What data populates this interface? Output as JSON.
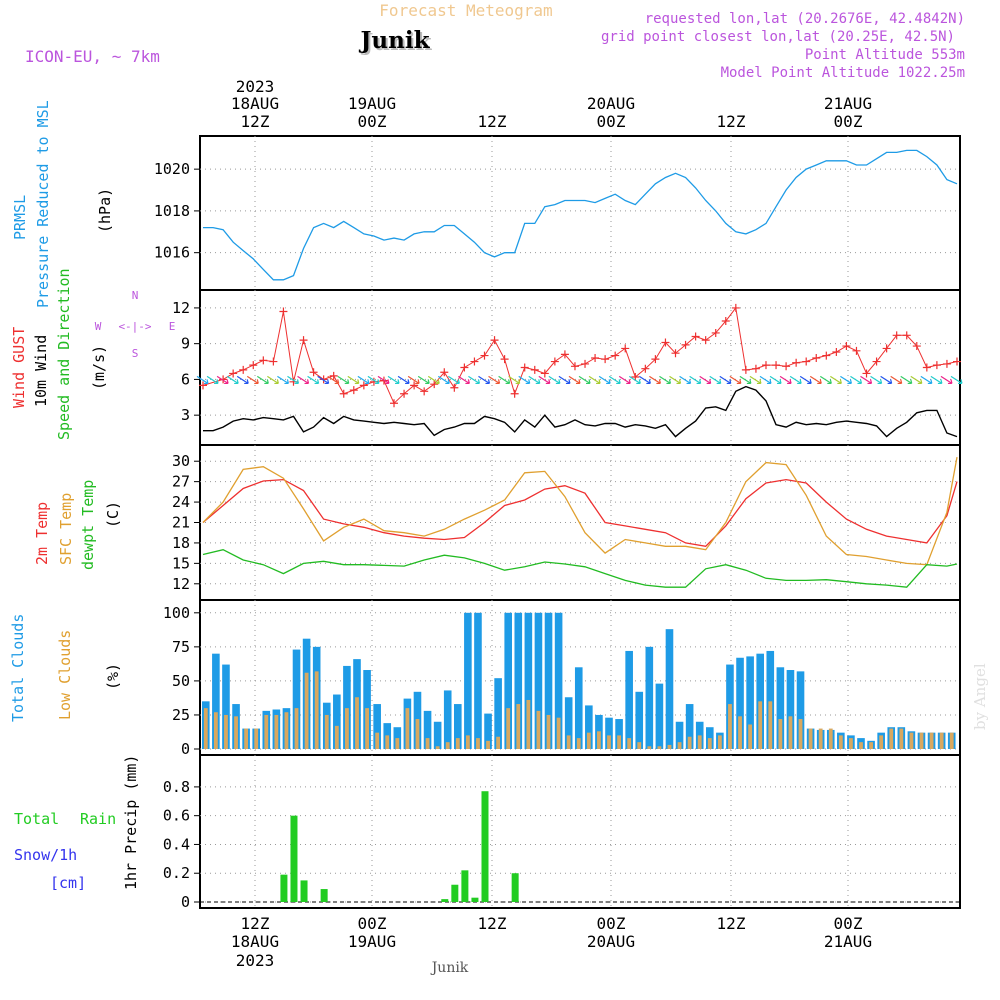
{
  "header": {
    "title": "Forecast Meteogram",
    "location": "Junik",
    "model": "ICON-EU, ~ 7km",
    "requested": "requested lon,lat (20.2676E, 42.4842N)",
    "grid_point": "grid point closest lon,lat (20.25E, 42.5N)",
    "point_altitude": "Point Altitude 553m",
    "model_altitude": "Model Point Altitude 1022.25m",
    "footer_location": "Junik",
    "credit": "by Angel"
  },
  "time_axis": {
    "top_year": "2023",
    "labels": [
      {
        "hour": "12Z",
        "date": "18AUG",
        "year": "2023"
      },
      {
        "hour": "00Z",
        "date": "19AUG",
        "year": ""
      },
      {
        "hour": "12Z",
        "date": "",
        "year": ""
      },
      {
        "hour": "00Z",
        "date": "20AUG",
        "year": ""
      },
      {
        "hour": "12Z",
        "date": "",
        "year": ""
      },
      {
        "hour": "00Z",
        "date": "21AUG",
        "year": ""
      }
    ]
  },
  "panel_labels": {
    "pressure": {
      "line1": "PRMSL",
      "line2": "Pressure Reduced to MSL",
      "unit": "(hPa)"
    },
    "wind": {
      "line1": "Wind GUST",
      "line2": "10m Wind",
      "line3": "Speed and Direction",
      "unit": "(m/s)",
      "compass_n": "N",
      "compass_s": "S",
      "compass_w": "W",
      "compass_e": "E"
    },
    "temp": {
      "line1": "2m Temp",
      "line2": "SFC Temp",
      "line3": "dewpt Temp",
      "unit": "(C)"
    },
    "clouds": {
      "line1": "Total Clouds",
      "line2": "Low Clouds",
      "unit": "(%)"
    },
    "precip": {
      "line1": "Total",
      "line1b": "Rain",
      "line2": "Snow/1h",
      "line3": "[cm]",
      "unit": "1hr Precip (mm)"
    }
  },
  "colors": {
    "pressure": "#1e9be6",
    "gust": "#ee3030",
    "wind": "#000000",
    "temp2m": "#ee3030",
    "sfc": "#e0a030",
    "dewpt": "#22bb22",
    "total_clouds": "#1e9be6",
    "low_clouds": "#d8a860",
    "rain": "#22cc22",
    "snow": "#3333ee",
    "title": "#f0c890",
    "meta": "#bb55dd"
  },
  "chart_data": [
    {
      "type": "line",
      "name": "pressure",
      "x_hours": [
        0,
        3,
        6,
        9,
        12,
        15,
        18,
        21,
        24,
        27,
        30,
        33,
        36,
        39,
        42,
        45,
        48,
        51,
        54,
        57,
        60,
        63,
        66,
        69,
        72
      ],
      "series": [
        {
          "name": "PRMSL",
          "x": [
            0,
            1,
            2,
            3,
            4,
            5,
            6,
            7,
            8,
            9,
            10,
            11,
            12,
            13,
            14,
            15,
            16,
            17,
            18,
            19,
            20,
            21,
            22,
            23,
            24,
            25,
            26,
            27,
            28,
            29,
            30,
            31,
            32,
            33,
            34,
            35,
            36,
            37,
            38,
            39,
            40,
            41,
            42,
            43,
            44,
            45,
            46,
            47,
            48,
            49,
            50,
            51,
            52,
            53,
            54,
            55,
            56,
            57,
            58,
            59,
            60,
            61,
            62,
            63,
            64,
            65,
            66,
            67,
            68,
            69,
            70,
            71,
            72,
            73,
            74,
            75
          ],
          "values": [
            1017.2,
            1017.2,
            1017.1,
            1016.5,
            1016.1,
            1015.7,
            1015.2,
            1014.7,
            1014.7,
            1014.9,
            1016.2,
            1017.2,
            1017.4,
            1017.2,
            1017.5,
            1017.2,
            1016.9,
            1016.8,
            1016.6,
            1016.7,
            1016.6,
            1016.9,
            1017.0,
            1017.0,
            1017.3,
            1017.3,
            1016.9,
            1016.5,
            1016.0,
            1015.8,
            1016.0,
            1016.0,
            1017.4,
            1017.4,
            1018.2,
            1018.3,
            1018.5,
            1018.5,
            1018.5,
            1018.4,
            1018.6,
            1018.8,
            1018.5,
            1018.3,
            1018.8,
            1019.3,
            1019.6,
            1019.8,
            1019.6,
            1019.1,
            1018.5,
            1018.0,
            1017.4,
            1017.0,
            1016.9,
            1017.1,
            1017.4,
            1018.2,
            1019.0,
            1019.6,
            1020.0,
            1020.2,
            1020.4,
            1020.4,
            1020.4,
            1020.2,
            1020.2,
            1020.5,
            1020.8,
            1020.8,
            1020.9,
            1020.9,
            1020.6,
            1020.2,
            1019.5,
            1019.3
          ]
        }
      ],
      "ylim": [
        1014.5,
        1021.3
      ],
      "yticks": [
        1016,
        1018,
        1020
      ]
    },
    {
      "type": "line",
      "name": "wind",
      "series": [
        {
          "name": "Wind GUST",
          "x": [
            0,
            2,
            3,
            4,
            5,
            6,
            7,
            8,
            9,
            10,
            11,
            12,
            13,
            14,
            15,
            16,
            17,
            18,
            19,
            20,
            21,
            22,
            23,
            24,
            25,
            26,
            27,
            28,
            29,
            30,
            31,
            32,
            33,
            34,
            35,
            36,
            37,
            38,
            39,
            40,
            41,
            42,
            43,
            44,
            45,
            46,
            47,
            48,
            49,
            50,
            51,
            52,
            53,
            54,
            55,
            56,
            57,
            58,
            59,
            60,
            61,
            62,
            63,
            64,
            65,
            66,
            67,
            68,
            69,
            70,
            71,
            72,
            73,
            74,
            75
          ],
          "values": [
            5.5,
            6.0,
            6.5,
            6.8,
            7.2,
            7.6,
            7.5,
            11.7,
            5.8,
            9.3,
            6.6,
            6.0,
            6.3,
            4.8,
            5.1,
            5.5,
            5.8,
            5.9,
            4.0,
            4.8,
            5.5,
            5.0,
            5.6,
            6.6,
            5.3,
            7.0,
            7.5,
            8.0,
            9.3,
            7.7,
            4.8,
            7.0,
            6.8,
            6.5,
            7.5,
            8.1,
            7.1,
            7.3,
            7.8,
            7.7,
            8.0,
            8.6,
            6.2,
            6.9,
            7.7,
            9.1,
            8.2,
            8.9,
            9.6,
            9.3,
            9.9,
            10.9,
            12.0,
            6.8,
            6.9,
            7.2,
            7.2,
            7.1,
            7.4,
            7.5,
            7.8,
            8.0,
            8.3,
            8.8,
            8.4,
            6.5,
            7.5,
            8.6,
            9.7,
            9.7,
            8.8,
            7.0,
            7.2,
            7.3,
            7.5
          ]
        },
        {
          "name": "10m Wind",
          "x": [
            0,
            1,
            2,
            3,
            4,
            5,
            6,
            7,
            8,
            9,
            10,
            11,
            12,
            13,
            14,
            15,
            16,
            17,
            18,
            19,
            20,
            21,
            22,
            23,
            24,
            25,
            26,
            27,
            28,
            29,
            30,
            31,
            32,
            33,
            34,
            35,
            36,
            37,
            38,
            39,
            40,
            41,
            42,
            43,
            44,
            45,
            46,
            47,
            48,
            49,
            50,
            51,
            52,
            53,
            54,
            55,
            56,
            57,
            58,
            59,
            60,
            61,
            62,
            63,
            64,
            65,
            66,
            67,
            68,
            69,
            70,
            71,
            72,
            73,
            74,
            75
          ],
          "values": [
            1.7,
            1.7,
            2.0,
            2.5,
            2.7,
            2.6,
            2.8,
            2.7,
            2.6,
            2.9,
            1.6,
            2.0,
            2.8,
            2.3,
            2.9,
            2.6,
            2.5,
            2.4,
            2.3,
            2.4,
            2.3,
            2.2,
            2.3,
            1.3,
            1.8,
            2.0,
            2.3,
            2.3,
            2.9,
            2.7,
            2.4,
            1.6,
            2.6,
            2.0,
            3.0,
            2.0,
            2.2,
            2.6,
            2.2,
            2.1,
            2.3,
            2.3,
            2.0,
            2.2,
            2.1,
            1.9,
            2.2,
            1.2,
            1.9,
            2.5,
            3.6,
            3.7,
            3.4,
            5.0,
            5.4,
            5.1,
            4.2,
            2.2,
            2.0,
            2.4,
            2.2,
            2.3,
            2.2,
            2.4,
            2.5,
            2.4,
            2.3,
            2.1,
            1.2,
            1.9,
            2.4,
            3.2,
            3.4,
            3.4,
            1.5,
            1.2
          ]
        }
      ],
      "ylim": [
        1.0,
        13.0
      ],
      "yticks": [
        3,
        6,
        9,
        12
      ]
    },
    {
      "type": "line",
      "name": "temperature",
      "series": [
        {
          "name": "2m Temp",
          "x": [
            0,
            2,
            4,
            6,
            8,
            10,
            12,
            14,
            16,
            18,
            20,
            22,
            24,
            26,
            28,
            30,
            32,
            34,
            36,
            38,
            40,
            42,
            44,
            46,
            48,
            50,
            52,
            54,
            56,
            58,
            60,
            62,
            64,
            66,
            68,
            70,
            72,
            74,
            75
          ],
          "values": [
            21.0,
            23.5,
            26.0,
            27.1,
            27.3,
            25.7,
            21.5,
            20.8,
            20.3,
            19.5,
            19.0,
            18.7,
            18.5,
            18.8,
            21.0,
            23.5,
            24.3,
            25.9,
            26.4,
            25.3,
            21.0,
            20.5,
            20.0,
            19.5,
            18.0,
            17.5,
            20.5,
            24.5,
            26.8,
            27.3,
            26.8,
            24.0,
            21.5,
            20.0,
            19.0,
            18.5,
            18.0,
            22.0,
            27.0
          ]
        },
        {
          "name": "SFC Temp",
          "x": [
            0,
            2,
            4,
            6,
            8,
            10,
            12,
            14,
            16,
            18,
            20,
            22,
            24,
            26,
            28,
            30,
            32,
            34,
            36,
            38,
            40,
            42,
            44,
            46,
            48,
            50,
            52,
            54,
            56,
            58,
            60,
            62,
            64,
            66,
            68,
            70,
            72,
            74,
            75
          ],
          "values": [
            21.0,
            24.0,
            28.8,
            29.2,
            27.5,
            23.0,
            18.3,
            20.3,
            21.5,
            19.8,
            19.5,
            19.0,
            20.0,
            21.5,
            22.8,
            24.3,
            28.3,
            28.5,
            24.8,
            19.5,
            16.5,
            18.5,
            18.0,
            17.5,
            17.5,
            17.0,
            21.0,
            27.0,
            29.8,
            29.5,
            25.0,
            19.0,
            16.3,
            16.0,
            15.5,
            15.0,
            14.8,
            22.5,
            30.6
          ]
        },
        {
          "name": "dewpt Temp",
          "x": [
            0,
            2,
            4,
            6,
            8,
            10,
            12,
            14,
            16,
            18,
            20,
            22,
            24,
            26,
            28,
            30,
            32,
            34,
            36,
            38,
            40,
            42,
            44,
            46,
            48,
            50,
            52,
            54,
            56,
            58,
            60,
            62,
            64,
            66,
            68,
            70,
            72,
            74,
            75
          ],
          "values": [
            16.3,
            17.0,
            15.5,
            14.8,
            13.5,
            15.0,
            15.3,
            14.8,
            14.8,
            14.7,
            14.6,
            15.5,
            16.2,
            15.8,
            15.0,
            14.0,
            14.5,
            15.2,
            14.9,
            14.5,
            13.5,
            12.5,
            11.8,
            11.5,
            11.5,
            14.2,
            14.8,
            14.0,
            12.8,
            12.5,
            12.5,
            12.6,
            12.3,
            12.0,
            11.8,
            11.5,
            14.8,
            14.6,
            14.9
          ]
        }
      ],
      "ylim": [
        10.5,
        31.5
      ],
      "yticks": [
        12,
        15,
        18,
        21,
        24,
        27,
        30
      ]
    },
    {
      "type": "bar",
      "name": "clouds",
      "series": [
        {
          "name": "Total Clouds",
          "values": [
            35,
            70,
            62,
            33,
            15,
            15,
            28,
            29,
            30,
            73,
            81,
            75,
            34,
            40,
            61,
            66,
            58,
            33,
            19,
            16,
            37,
            42,
            28,
            20,
            43,
            33,
            100,
            100,
            26,
            52,
            100,
            100,
            100,
            100,
            100,
            100,
            38,
            60,
            32,
            25,
            23,
            22,
            72,
            42,
            75,
            48,
            88,
            20,
            33,
            20,
            16,
            12,
            62,
            67,
            68,
            70,
            72,
            60,
            58,
            57,
            15,
            14,
            14,
            12,
            10,
            8,
            6,
            12,
            16,
            16,
            13,
            12,
            12,
            12,
            12
          ]
        },
        {
          "name": "Low Clouds",
          "values": [
            30,
            27,
            25,
            24,
            15,
            15,
            25,
            25,
            27,
            30,
            56,
            57,
            25,
            17,
            30,
            38,
            30,
            12,
            10,
            8,
            30,
            22,
            8,
            2,
            5,
            8,
            10,
            8,
            6,
            9,
            30,
            33,
            36,
            28,
            25,
            23,
            10,
            8,
            12,
            13,
            10,
            10,
            8,
            5,
            2,
            2,
            3,
            5,
            9,
            10,
            8,
            10,
            33,
            24,
            18,
            35,
            35,
            22,
            24,
            22,
            15,
            15,
            15,
            10,
            8,
            5,
            5,
            10,
            15,
            15,
            12,
            12,
            12,
            12,
            12
          ]
        }
      ],
      "ylim": [
        0,
        105
      ],
      "yticks": [
        0,
        25,
        50,
        75,
        100
      ]
    },
    {
      "type": "bar",
      "name": "precipitation",
      "series": [
        {
          "name": "Rain",
          "x": [
            8,
            9,
            10,
            12,
            24,
            25,
            26,
            27,
            28,
            29,
            31
          ],
          "values": [
            0.19,
            0.6,
            0.15,
            0.09,
            0.02,
            0.12,
            0.22,
            0.03,
            0.77,
            0.0,
            0.2
          ]
        }
      ],
      "ylim": [
        0,
        0.98
      ],
      "yticks": [
        0,
        0.2,
        0.4,
        0.6,
        0.8
      ]
    }
  ]
}
